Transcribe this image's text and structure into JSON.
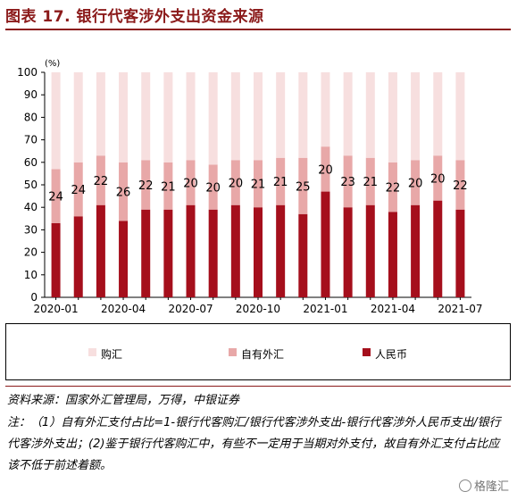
{
  "title": "图表 17. 银行代客涉外支出资金来源",
  "colors": {
    "title": "#8b1a1a",
    "rmb": "#a50f1c",
    "own_fx": "#e8a8a8",
    "purchase_fx": "#f7dfdf"
  },
  "chart_data": {
    "type": "bar",
    "stacked": true,
    "unit_label": "(%)",
    "ylim": [
      0,
      100
    ],
    "yticks": [
      0,
      10,
      20,
      30,
      40,
      50,
      60,
      70,
      80,
      90,
      100
    ],
    "categories": [
      "2020-01",
      "2020-02",
      "2020-03",
      "2020-04",
      "2020-05",
      "2020-06",
      "2020-07",
      "2020-08",
      "2020-09",
      "2020-10",
      "2020-11",
      "2020-12",
      "2021-01",
      "2021-02",
      "2021-03",
      "2021-04",
      "2021-05",
      "2021-06",
      "2021-07"
    ],
    "xtick_labels": [
      "2020-01",
      "2020-04",
      "2020-07",
      "2020-10",
      "2021-01",
      "2021-04",
      "2021-07"
    ],
    "series": [
      {
        "name": "人民币",
        "color_key": "rmb",
        "values": [
          33,
          36,
          41,
          34,
          39,
          39,
          41,
          39,
          41,
          40,
          41,
          37,
          47,
          40,
          41,
          38,
          41,
          43,
          39
        ]
      },
      {
        "name": "自有外汇",
        "color_key": "own_fx",
        "values": [
          24,
          24,
          22,
          26,
          22,
          21,
          20,
          20,
          20,
          21,
          21,
          25,
          20,
          23,
          21,
          22,
          20,
          20,
          22
        ]
      },
      {
        "name": "购汇",
        "color_key": "purchase_fx",
        "values": [
          43,
          40,
          37,
          40,
          39,
          40,
          39,
          41,
          39,
          39,
          38,
          38,
          33,
          37,
          38,
          40,
          39,
          37,
          39
        ]
      }
    ],
    "data_labels": [
      "24",
      "24",
      "22",
      "26",
      "22",
      "21",
      "20",
      "20",
      "20",
      "21",
      "21",
      "25",
      "20",
      "23",
      "21",
      "22",
      "20",
      "20",
      "22"
    ],
    "legend": [
      "购汇",
      "自有外汇",
      "人民币"
    ]
  },
  "source": "资料来源：国家外汇管理局，万得，中银证券",
  "note": "注：（1）自有外汇支付占比=1-银行代客购汇/银行代客涉外支出-银行代客涉外人民币支出/银行代客涉外支出；(2)鉴于银行代客购汇中，有些不一定用于当期对外支付，故自有外汇支付占比应该不低于前述着额。",
  "watermark": "格隆汇"
}
